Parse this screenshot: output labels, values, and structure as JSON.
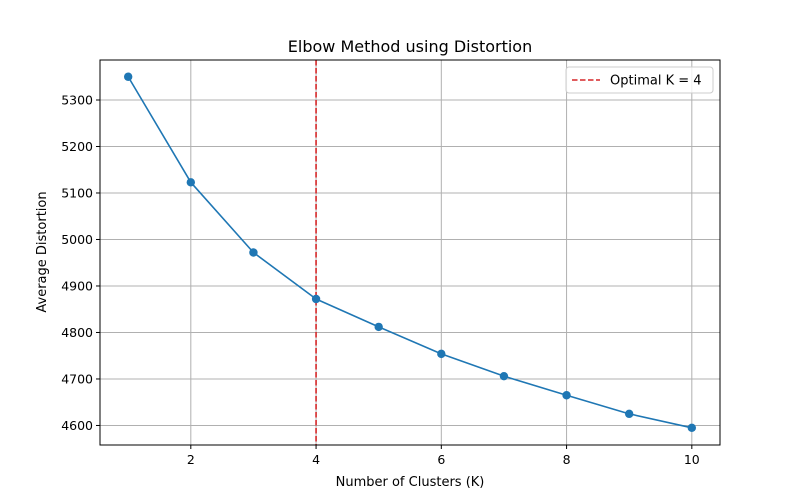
{
  "colors": {
    "line": "#1f77b4",
    "marker": "#1f77b4",
    "optimal": "#d62728",
    "grid": "#b0b0b0",
    "axes": "#000000",
    "background": "#ffffff"
  },
  "chart_data": {
    "type": "line",
    "title": "Elbow Method using Distortion",
    "xlabel": "Number of Clusters (K)",
    "ylabel": "Average Distortion",
    "x": [
      1,
      2,
      3,
      4,
      5,
      6,
      7,
      8,
      9,
      10
    ],
    "series": [
      {
        "values": [
          5350,
          5123,
          4972,
          4872,
          4812,
          4754,
          4706,
          4665,
          4625,
          4595
        ],
        "marker": "circle"
      }
    ],
    "optimal_k": 4,
    "legend": {
      "entries": [
        "Optimal K = 4"
      ],
      "placement": "top-right"
    },
    "xlim": [
      0.55,
      10.45
    ],
    "ylim": [
      4558,
      5386
    ],
    "xticks": [
      2,
      4,
      6,
      8,
      10
    ],
    "yticks": [
      4600,
      4700,
      4800,
      4900,
      5000,
      5100,
      5200,
      5300
    ],
    "grid": true
  }
}
